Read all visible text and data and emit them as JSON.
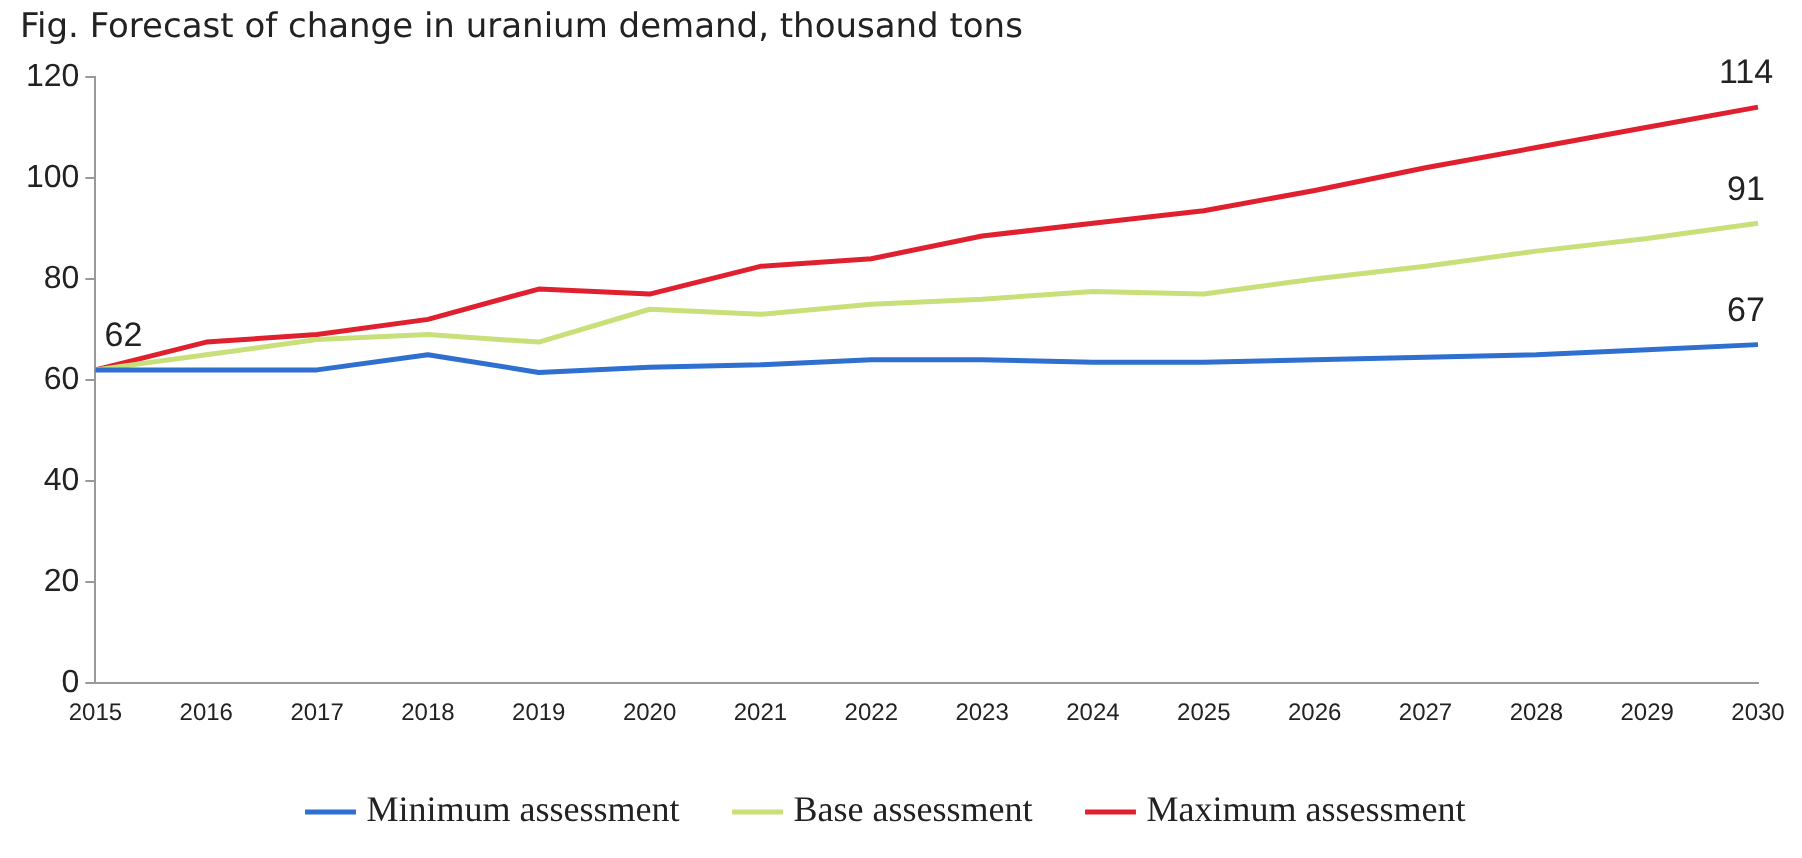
{
  "chart_data": {
    "type": "line",
    "title": "Fig. Forecast of change in uranium demand, thousand tons",
    "categories": [
      "2015",
      "2016",
      "2017",
      "2018",
      "2019",
      "2020",
      "2021",
      "2022",
      "2023",
      "2024",
      "2025",
      "2026",
      "2027",
      "2028",
      "2029",
      "2030"
    ],
    "series": [
      {
        "name": "Minimum assessment",
        "color": "#2e6fd0",
        "values": [
          62,
          62,
          62,
          65,
          61.5,
          62.5,
          63,
          64,
          64,
          63.5,
          63.5,
          64,
          64.5,
          65,
          66,
          67
        ],
        "value_labels": [
          null,
          null,
          null,
          null,
          null,
          null,
          null,
          null,
          null,
          null,
          null,
          null,
          null,
          null,
          null,
          "67"
        ]
      },
      {
        "name": "Base assessment",
        "color": "#c8e07a",
        "values": [
          62,
          65,
          68,
          69,
          67.5,
          74,
          73,
          75,
          76,
          77.5,
          77,
          80,
          82.5,
          85.5,
          88,
          91
        ],
        "value_labels": [
          null,
          null,
          null,
          null,
          null,
          null,
          null,
          null,
          null,
          null,
          null,
          null,
          null,
          null,
          null,
          "91"
        ]
      },
      {
        "name": "Maximum assessment",
        "color": "#e0202f",
        "values": [
          62,
          67.5,
          69,
          72,
          78,
          77,
          82.5,
          84,
          88.5,
          91,
          93.5,
          97.5,
          102,
          106,
          110,
          114
        ],
        "value_labels": [
          "62",
          null,
          null,
          null,
          null,
          null,
          null,
          null,
          null,
          null,
          null,
          null,
          null,
          null,
          null,
          "114"
        ]
      }
    ],
    "ylim": [
      0,
      120
    ],
    "yticks": [
      0,
      20,
      40,
      60,
      80,
      100,
      120
    ],
    "grid": false,
    "legend": "bottom",
    "marker": "none",
    "line_style": "solid"
  }
}
